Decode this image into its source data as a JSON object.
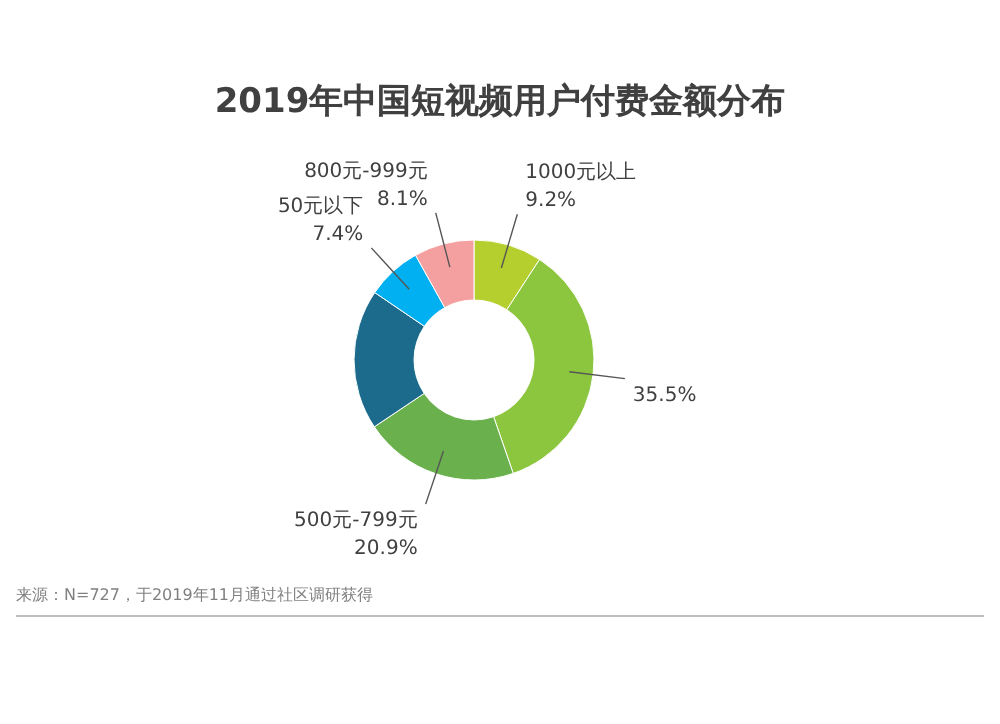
{
  "chart_data": {
    "type": "donut",
    "title": "2019年中国短视频用户付费金额分布",
    "categories": [
      "1000元以上",
      null,
      "500元-799元",
      null,
      "50元以下",
      "800元-999元"
    ],
    "values": [
      9.2,
      35.5,
      20.9,
      18.9,
      7.4,
      8.1
    ],
    "colors": [
      "#b5cf2f",
      "#8cc63f",
      "#6ab04c",
      "#1c6b8c",
      "#00b0f0",
      "#f4a0a0"
    ],
    "value_labels": [
      "9.2%",
      "35.5%",
      "20.9%",
      null,
      "7.4%",
      "8.1%"
    ],
    "annotations": [
      "来源：N=727，于2019年11月通过社区调研获得"
    ]
  }
}
